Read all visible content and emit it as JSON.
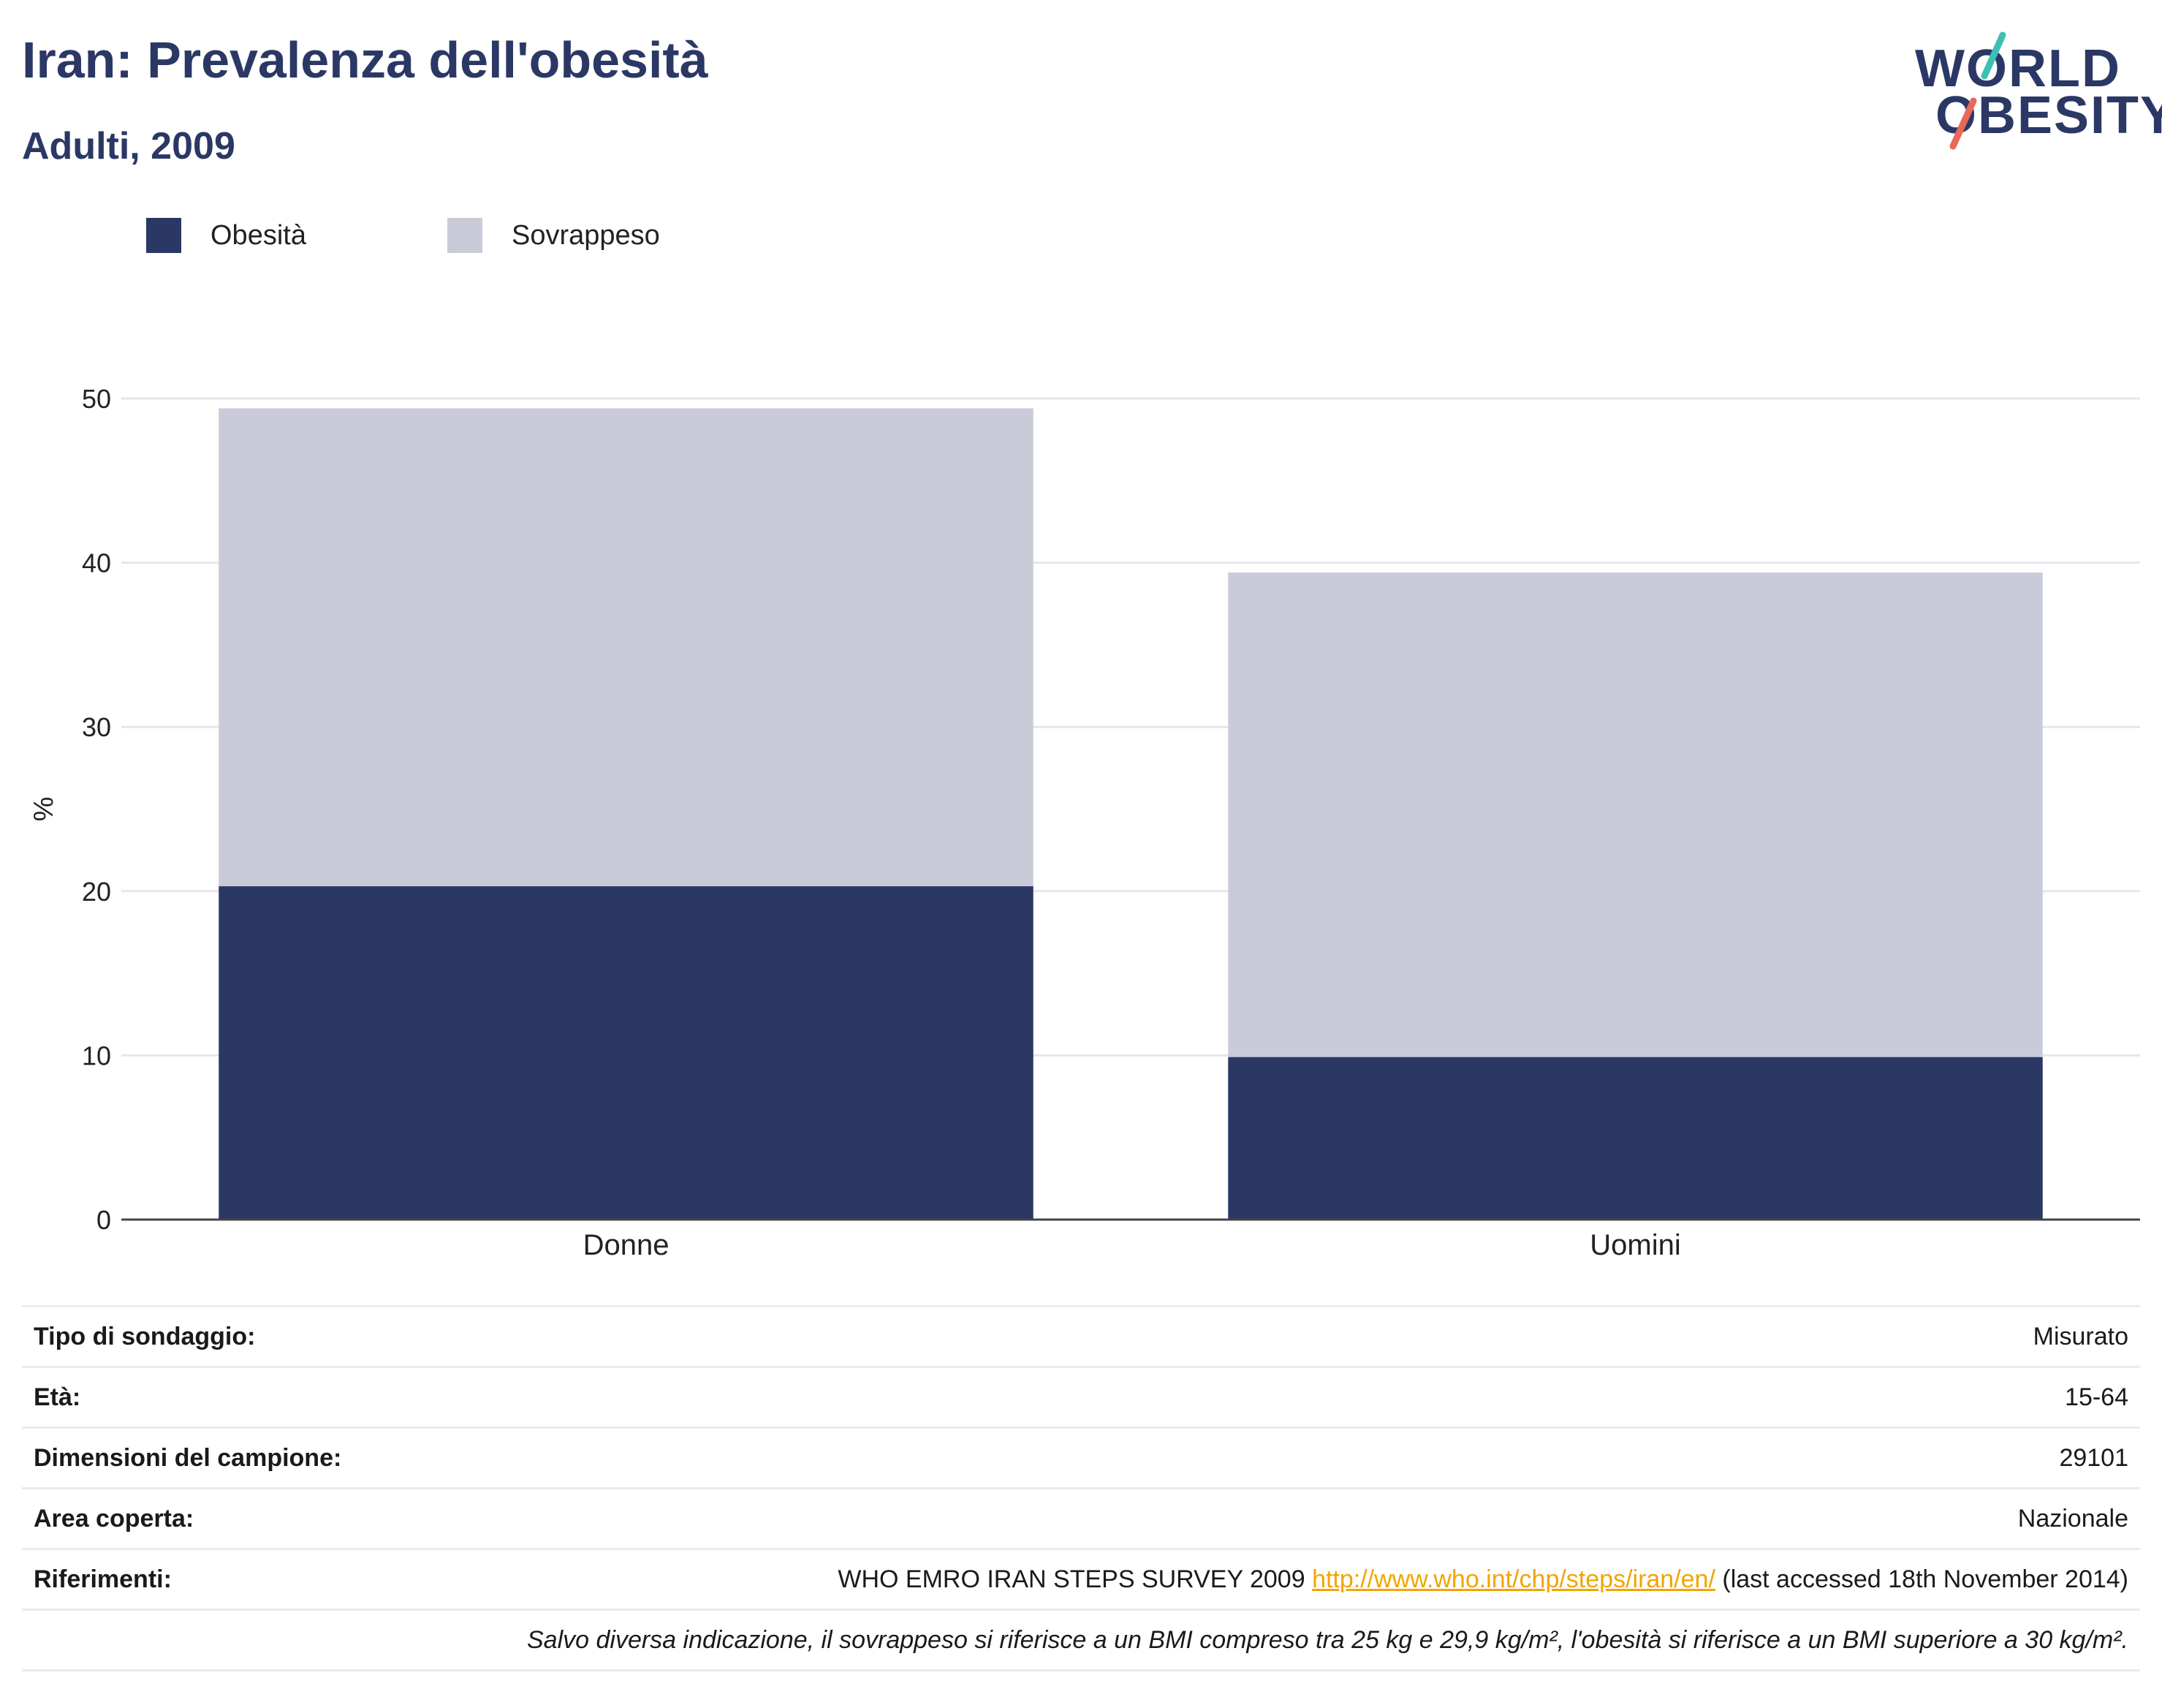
{
  "title": "Iran: Prevalenza dell'obesità",
  "subtitle": "Adulti, 2009",
  "logo": {
    "line1": "WORLD",
    "line2": "OBESITY",
    "accent_colors": [
      "#3fbfb3",
      "#e8685a"
    ]
  },
  "legend": [
    {
      "label": "Obesità",
      "color": "#2b3865"
    },
    {
      "label": "Sovrappeso",
      "color": "#c9ccd8"
    }
  ],
  "chart_data": {
    "type": "bar",
    "stacked": true,
    "categories": [
      "Donne",
      "Uomini"
    ],
    "series": [
      {
        "name": "Obesità",
        "color": "#2b3865",
        "values": [
          20.3,
          9.9
        ]
      },
      {
        "name": "Sovrappeso",
        "color": "#c9ccd8",
        "values": [
          29.1,
          29.5
        ]
      }
    ],
    "ylabel": "%",
    "ylim": [
      0,
      50
    ],
    "yticks": [
      0,
      10,
      20,
      30,
      40,
      50
    ],
    "grid": true
  },
  "info": {
    "rows": [
      {
        "key": "Tipo di sondaggio:",
        "value": "Misurato"
      },
      {
        "key": "Età:",
        "value": "15-64"
      },
      {
        "key": "Dimensioni del campione:",
        "value": "29101"
      },
      {
        "key": "Area coperta:",
        "value": "Nazionale"
      }
    ],
    "references": {
      "key": "Riferimenti:",
      "text_before": "WHO EMRO IRAN STEPS SURVEY 2009 ",
      "link": "http://www.who.int/chp/steps/iran/en/",
      "text_after": " (last accessed 18th November 2014)"
    },
    "note": "Salvo diversa indicazione, il sovrappeso si riferisce a un BMI compreso tra 25 kg e 29,9 kg/m², l'obesità si riferisce a un BMI superiore a 30 kg/m²."
  }
}
